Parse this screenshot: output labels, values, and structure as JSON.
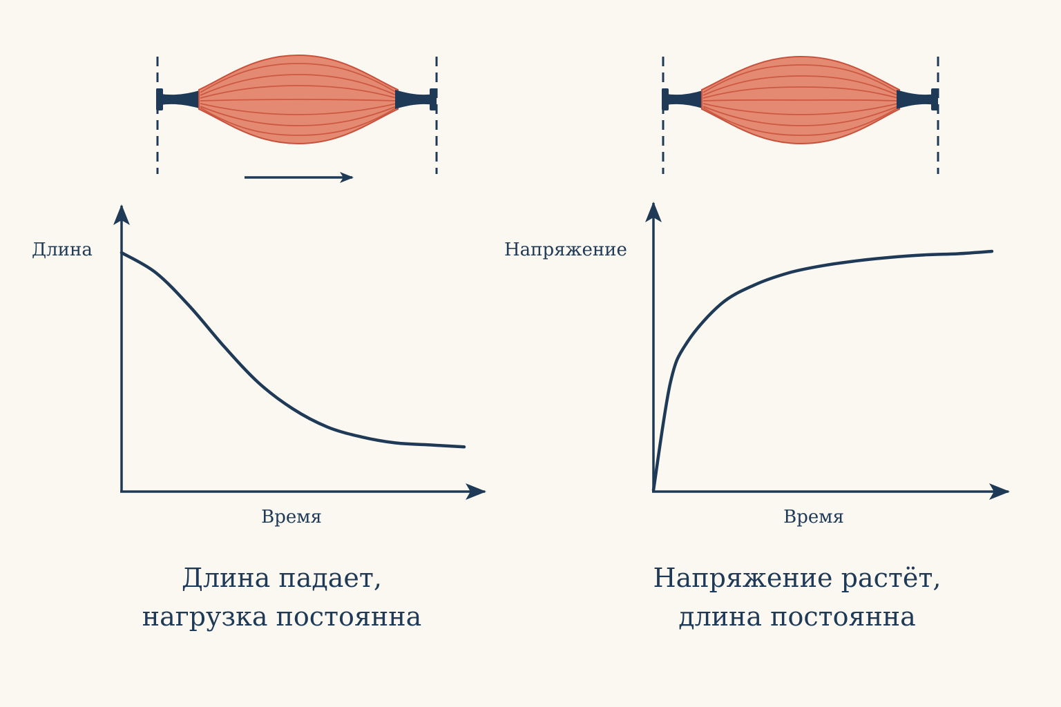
{
  "colors": {
    "background": "#fbf7f1",
    "ink": "#1f3a56",
    "muscle_fill": "#e58a72",
    "muscle_fiber": "#c8503a",
    "tendon": "#1f3a56"
  },
  "panels": [
    {
      "id": "isotonic",
      "y_axis_label": "Длина",
      "x_axis_label": "Время",
      "caption_line1": "Длина падает,",
      "caption_line2": "нагрузка постоянна",
      "shows_motion_arrow": true,
      "motion_arrow_direction": "right",
      "chart_data": {
        "type": "line",
        "xlabel": "Время",
        "ylabel": "Длина",
        "trend": "sigmoidal decrease to a plateau",
        "x": [
          0,
          0.1,
          0.2,
          0.3,
          0.4,
          0.5,
          0.6,
          0.7,
          0.8,
          0.9,
          1.0
        ],
        "values": [
          1.0,
          0.9,
          0.73,
          0.53,
          0.35,
          0.22,
          0.13,
          0.08,
          0.05,
          0.04,
          0.03
        ]
      }
    },
    {
      "id": "isometric",
      "y_axis_label": "Напряжение",
      "x_axis_label": "Время",
      "caption_line1": "Напряжение растёт,",
      "caption_line2": "длина постоянна",
      "shows_motion_arrow": false,
      "chart_data": {
        "type": "line",
        "xlabel": "Время",
        "ylabel": "Напряжение",
        "trend": "rapid rise to a saturation plateau",
        "x": [
          0,
          0.05,
          0.1,
          0.2,
          0.3,
          0.4,
          0.5,
          0.6,
          0.7,
          0.8,
          0.9,
          1.0
        ],
        "values": [
          0.0,
          0.45,
          0.62,
          0.78,
          0.86,
          0.91,
          0.94,
          0.96,
          0.975,
          0.985,
          0.99,
          1.0
        ]
      }
    }
  ]
}
